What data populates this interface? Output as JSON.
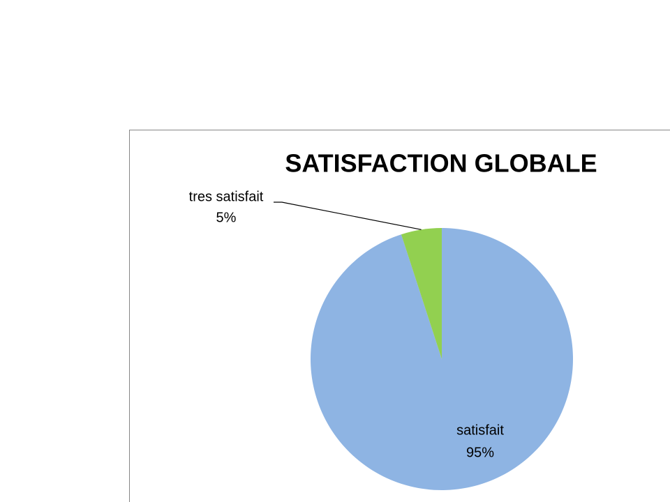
{
  "chart_data": {
    "type": "pie",
    "title": "SATISFACTION GLOBALE",
    "categories": [
      "satisfait",
      "tres satisfait"
    ],
    "values": [
      95,
      5
    ],
    "value_labels": [
      "95%",
      "5%"
    ],
    "colors": [
      "#8eb4e3",
      "#92d050"
    ]
  }
}
